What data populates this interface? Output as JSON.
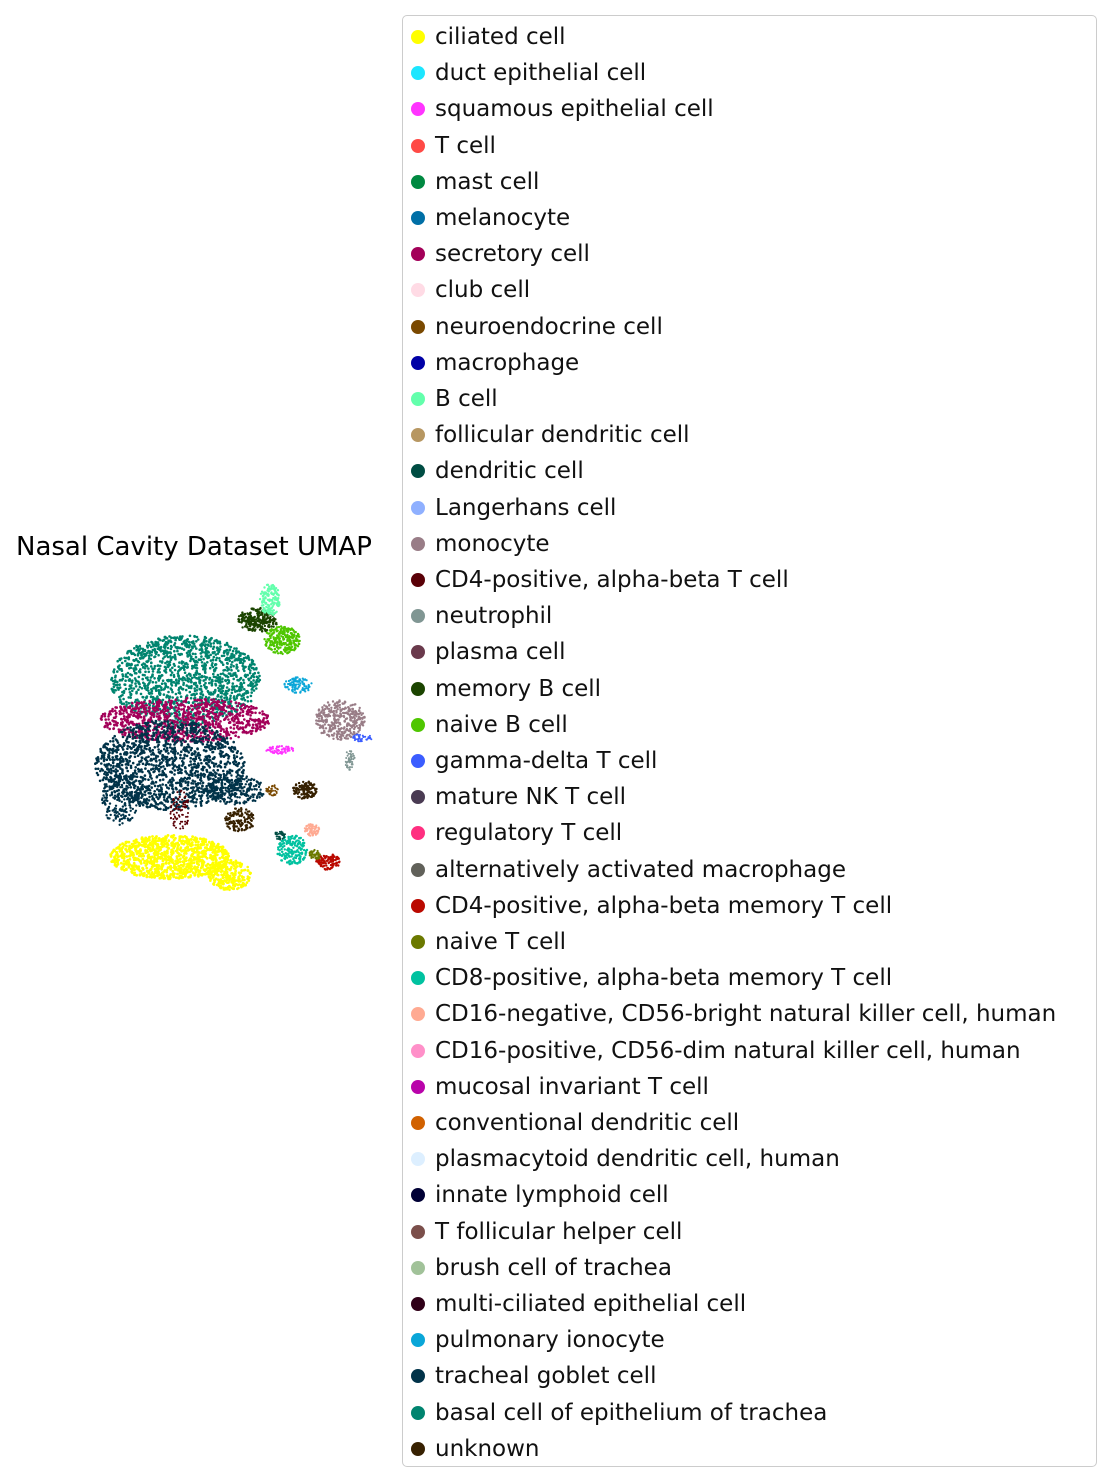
{
  "chart_data": {
    "type": "scatter",
    "title": "Nasal Cavity Dataset UMAP",
    "xlabel": "",
    "ylabel": "",
    "grid": false,
    "legend_placement": "right",
    "series": [
      {
        "name": "ciliated cell",
        "color": "#ffff00"
      },
      {
        "name": "duct epithelial cell",
        "color": "#1ce6ff"
      },
      {
        "name": "squamous epithelial cell",
        "color": "#ff34ff"
      },
      {
        "name": "T cell",
        "color": "#ff4a46"
      },
      {
        "name": "mast cell",
        "color": "#008941"
      },
      {
        "name": "melanocyte",
        "color": "#006fa6"
      },
      {
        "name": "secretory cell",
        "color": "#a30059"
      },
      {
        "name": "club cell",
        "color": "#ffdbe5"
      },
      {
        "name": "neuroendocrine cell",
        "color": "#7a4900"
      },
      {
        "name": "macrophage",
        "color": "#0000a6"
      },
      {
        "name": "B cell",
        "color": "#63ffac"
      },
      {
        "name": "follicular dendritic cell",
        "color": "#b79762"
      },
      {
        "name": "dendritic cell",
        "color": "#004d43"
      },
      {
        "name": "Langerhans cell",
        "color": "#8fb0ff"
      },
      {
        "name": "monocyte",
        "color": "#997d87"
      },
      {
        "name": "CD4-positive, alpha-beta T cell",
        "color": "#5a0007"
      },
      {
        "name": "neutrophil",
        "color": "#809693"
      },
      {
        "name": "plasma cell",
        "color": "#6a3a4c"
      },
      {
        "name": "memory B cell",
        "color": "#1b4400"
      },
      {
        "name": "naive B cell",
        "color": "#4fc601"
      },
      {
        "name": "gamma-delta T cell",
        "color": "#3b5dff"
      },
      {
        "name": "mature NK T cell",
        "color": "#4a3b53"
      },
      {
        "name": "regulatory T cell",
        "color": "#ff2f80"
      },
      {
        "name": "alternatively activated macrophage",
        "color": "#61615a"
      },
      {
        "name": "CD4-positive, alpha-beta memory T cell",
        "color": "#ba0900"
      },
      {
        "name": "naive T cell",
        "color": "#6b7900"
      },
      {
        "name": "CD8-positive, alpha-beta memory T cell",
        "color": "#00c2a0"
      },
      {
        "name": "CD16-negative, CD56-bright natural killer cell, human",
        "color": "#ffaa92"
      },
      {
        "name": "CD16-positive, CD56-dim natural killer cell, human",
        "color": "#ff90c9"
      },
      {
        "name": "mucosal invariant T cell",
        "color": "#b903aa"
      },
      {
        "name": "conventional dendritic cell",
        "color": "#d16100"
      },
      {
        "name": "plasmacytoid dendritic cell, human",
        "color": "#ddefff"
      },
      {
        "name": "innate lymphoid cell",
        "color": "#000035"
      },
      {
        "name": "T follicular helper cell",
        "color": "#7b4f4b"
      },
      {
        "name": "brush cell of trachea",
        "color": "#a1c299"
      },
      {
        "name": "multi-ciliated epithelial cell",
        "color": "#300018"
      },
      {
        "name": "pulmonary ionocyte",
        "color": "#0aa6d8"
      },
      {
        "name": "tracheal goblet cell",
        "color": "#013349"
      },
      {
        "name": "basal cell of epithelium of trachea",
        "color": "#00846f"
      },
      {
        "name": "unknown",
        "color": "#372101"
      }
    ]
  }
}
